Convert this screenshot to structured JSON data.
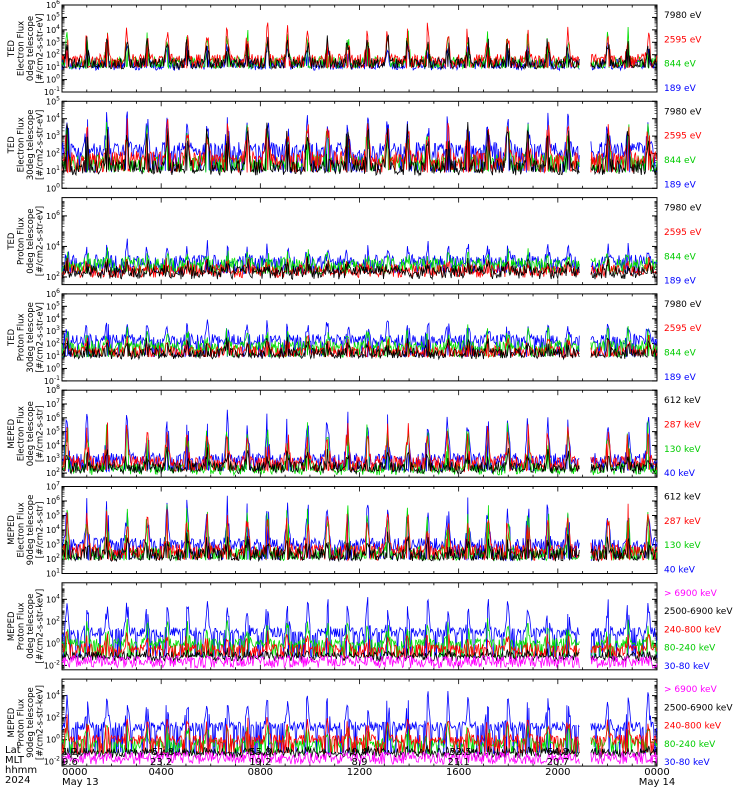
{
  "chart_data": [
    {
      "type": "line",
      "ylabel": [
        "TED",
        "Electron Flux",
        "0deg telescope",
        "[#/cm2-s-str-eV]"
      ],
      "y_tick_exponents": [
        -1,
        0,
        1,
        2,
        3,
        4,
        5,
        6
      ],
      "ylim_log10": [
        -1,
        6
      ],
      "ylog": true,
      "baseline_log10": 1.0,
      "series": [
        {
          "name": "7980 eV",
          "color": "#000000",
          "typical_log10": 1.3,
          "peak_log10": 3.6
        },
        {
          "name": "2595 eV",
          "color": "#ff0000",
          "typical_log10": 1.6,
          "peak_log10": 4.4
        },
        {
          "name": "844 eV",
          "color": "#00dd00",
          "typical_log10": 1.4,
          "peak_log10": 4.0
        },
        {
          "name": "189 eV",
          "color": "#0000ff",
          "typical_log10": 1.2,
          "peak_log10": 3.0
        }
      ]
    },
    {
      "type": "line",
      "ylabel": [
        "TED",
        "Electron Flux",
        "30deg telescope",
        "[#/cm2-s-str-eV]"
      ],
      "y_tick_exponents": [
        0,
        1,
        2,
        3,
        4,
        5
      ],
      "ylim_log10": [
        0,
        5
      ],
      "ylog": true,
      "baseline_log10": 1.0,
      "series": [
        {
          "name": "7980 eV",
          "color": "#000000",
          "typical_log10": 1.2,
          "peak_log10": 3.8
        },
        {
          "name": "2595 eV",
          "color": "#ff0000",
          "typical_log10": 1.7,
          "peak_log10": 4.0
        },
        {
          "name": "844 eV",
          "color": "#00dd00",
          "typical_log10": 1.5,
          "peak_log10": 3.6
        },
        {
          "name": "189 eV",
          "color": "#0000ff",
          "typical_log10": 2.2,
          "peak_log10": 4.2
        }
      ]
    },
    {
      "type": "line",
      "ylabel": [
        "TED",
        "Proton Flux",
        "0deg telescope",
        "[#/cm2-s-str-eV]"
      ],
      "y_tick_exponents": [
        2,
        4,
        6
      ],
      "ylim_log10": [
        1.5,
        7.2
      ],
      "ylog": true,
      "baseline_log10": 2.3,
      "series": [
        {
          "name": "7980 eV",
          "color": "#000000",
          "typical_log10": 2.3,
          "peak_log10": 3.0
        },
        {
          "name": "2595 eV",
          "color": "#ff0000",
          "typical_log10": 2.4,
          "peak_log10": 3.0
        },
        {
          "name": "844 eV",
          "color": "#00dd00",
          "typical_log10": 2.8,
          "peak_log10": 3.6
        },
        {
          "name": "189 eV",
          "color": "#0000ff",
          "typical_log10": 3.0,
          "peak_log10": 4.1
        }
      ]
    },
    {
      "type": "line",
      "ylabel": [
        "TED",
        "Proton Flux",
        "30deg telescope",
        "[#/cm2-s-str-eV]"
      ],
      "y_tick_exponents": [
        -1,
        0,
        1,
        2,
        3,
        4,
        5,
        6
      ],
      "ylim_log10": [
        -1,
        6
      ],
      "ylog": true,
      "baseline_log10": 1.0,
      "series": [
        {
          "name": "7980 eV",
          "color": "#000000",
          "typical_log10": 1.2,
          "peak_log10": 2.4
        },
        {
          "name": "2595 eV",
          "color": "#ff0000",
          "typical_log10": 1.4,
          "peak_log10": 2.4
        },
        {
          "name": "844 eV",
          "color": "#00dd00",
          "typical_log10": 1.8,
          "peak_log10": 3.2
        },
        {
          "name": "189 eV",
          "color": "#0000ff",
          "typical_log10": 2.3,
          "peak_log10": 3.8
        }
      ]
    },
    {
      "type": "line",
      "ylabel": [
        "MEPED",
        "Electron Flux",
        "0deg telescope",
        "[#/cm2-s-str]"
      ],
      "y_tick_exponents": [
        2,
        3,
        4,
        5,
        6,
        7,
        8
      ],
      "ylim_log10": [
        1.7,
        8
      ],
      "ylog": true,
      "baseline_log10": 2.2,
      "series": [
        {
          "name": "612 keV",
          "color": "#000000",
          "typical_log10": 2.4,
          "peak_log10": 3.6
        },
        {
          "name": "287 keV",
          "color": "#ff0000",
          "typical_log10": 2.8,
          "peak_log10": 5.5
        },
        {
          "name": "130 keV",
          "color": "#00dd00",
          "typical_log10": 2.3,
          "peak_log10": 5.8
        },
        {
          "name": "40 keV",
          "color": "#0000ff",
          "typical_log10": 3.0,
          "peak_log10": 6.6
        }
      ]
    },
    {
      "type": "line",
      "ylabel": [
        "MEPED",
        "Electron Flux",
        "90deg telescope",
        "[#/cm2-s-str]"
      ],
      "y_tick_exponents": [
        1,
        2,
        3,
        4,
        5,
        6,
        7
      ],
      "ylim_log10": [
        1,
        7
      ],
      "ylog": true,
      "baseline_log10": 2.0,
      "series": [
        {
          "name": "612 keV",
          "color": "#000000",
          "typical_log10": 2.3,
          "peak_log10": 3.6
        },
        {
          "name": "287 keV",
          "color": "#ff0000",
          "typical_log10": 2.6,
          "peak_log10": 5.4
        },
        {
          "name": "130 keV",
          "color": "#00dd00",
          "typical_log10": 2.4,
          "peak_log10": 5.7
        },
        {
          "name": "40 keV",
          "color": "#0000ff",
          "typical_log10": 3.0,
          "peak_log10": 6.0
        }
      ]
    },
    {
      "type": "line",
      "ylabel": [
        "MEPED",
        "Proton Flux",
        "0deg telescope",
        "[#/cm2-s-str-keV]"
      ],
      "y_tick_exponents": [
        -2,
        0,
        2,
        4
      ],
      "ylim_log10": [
        -2.4,
        5.5
      ],
      "ylog": true,
      "baseline_log10": -1.2,
      "series": [
        {
          "name": "> 6900 keV",
          "color": "#ff00ff",
          "typical_log10": -1.8,
          "peak_log10": -1.5
        },
        {
          "name": "2500-6900 keV",
          "color": "#000000",
          "typical_log10": -1.2,
          "peak_log10": -0.8
        },
        {
          "name": "240-800 keV",
          "color": "#ff0000",
          "typical_log10": -0.5,
          "peak_log10": 1.0
        },
        {
          "name": "80-240 keV",
          "color": "#00dd00",
          "typical_log10": 0.0,
          "peak_log10": 2.0
        },
        {
          "name": "30-80 keV",
          "color": "#0000ff",
          "typical_log10": 1.0,
          "peak_log10": 4.0
        }
      ]
    },
    {
      "type": "line",
      "ylabel": [
        "MEPED",
        "Proton Flux",
        "90deg telescope",
        "[#/cm2-s-str-keV]"
      ],
      "y_tick_exponents": [
        -2,
        0,
        2,
        4
      ],
      "ylim_log10": [
        -2.4,
        5.5
      ],
      "ylog": true,
      "baseline_log10": -1.2,
      "series": [
        {
          "name": "> 6900 keV",
          "color": "#ff00ff",
          "typical_log10": -1.8,
          "peak_log10": -1.5
        },
        {
          "name": "2500-6900 keV",
          "color": "#000000",
          "typical_log10": -1.2,
          "peak_log10": -0.8
        },
        {
          "name": "240-800 keV",
          "color": "#ff0000",
          "typical_log10": 0.0,
          "peak_log10": 2.0
        },
        {
          "name": "80-240 keV",
          "color": "#00dd00",
          "typical_log10": -0.3,
          "peak_log10": 1.5
        },
        {
          "name": "30-80 keV",
          "color": "#0000ff",
          "typical_log10": 1.2,
          "peak_log10": 4.2
        }
      ]
    }
  ],
  "x_axis": {
    "hours_range": [
      0,
      24
    ],
    "gaps_hours": [
      [
        20.9,
        21.3
      ]
    ],
    "row_titles": [
      "Lat",
      "MLT",
      "hhmm",
      "2024"
    ],
    "columns": [
      {
        "lat": "1.2",
        "mlt": "9.6",
        "hhmm": "0000",
        "date": "May 13"
      },
      {
        "lat": "-51.8",
        "mlt": "23.2",
        "hhmm": "0400",
        "date": ""
      },
      {
        "lat": "55.8",
        "mlt": "19.2",
        "hhmm": "0800",
        "date": ""
      },
      {
        "lat": "0.4",
        "mlt": "8.9",
        "hhmm": "1200",
        "date": ""
      },
      {
        "lat": "-52.5",
        "mlt": "21.1",
        "hhmm": "1600",
        "date": ""
      },
      {
        "lat": "64.8",
        "mlt": "20.7",
        "hhmm": "2000",
        "date": ""
      },
      {
        "lat": "",
        "mlt": "",
        "hhmm": "0000",
        "date": "May 14"
      }
    ]
  }
}
